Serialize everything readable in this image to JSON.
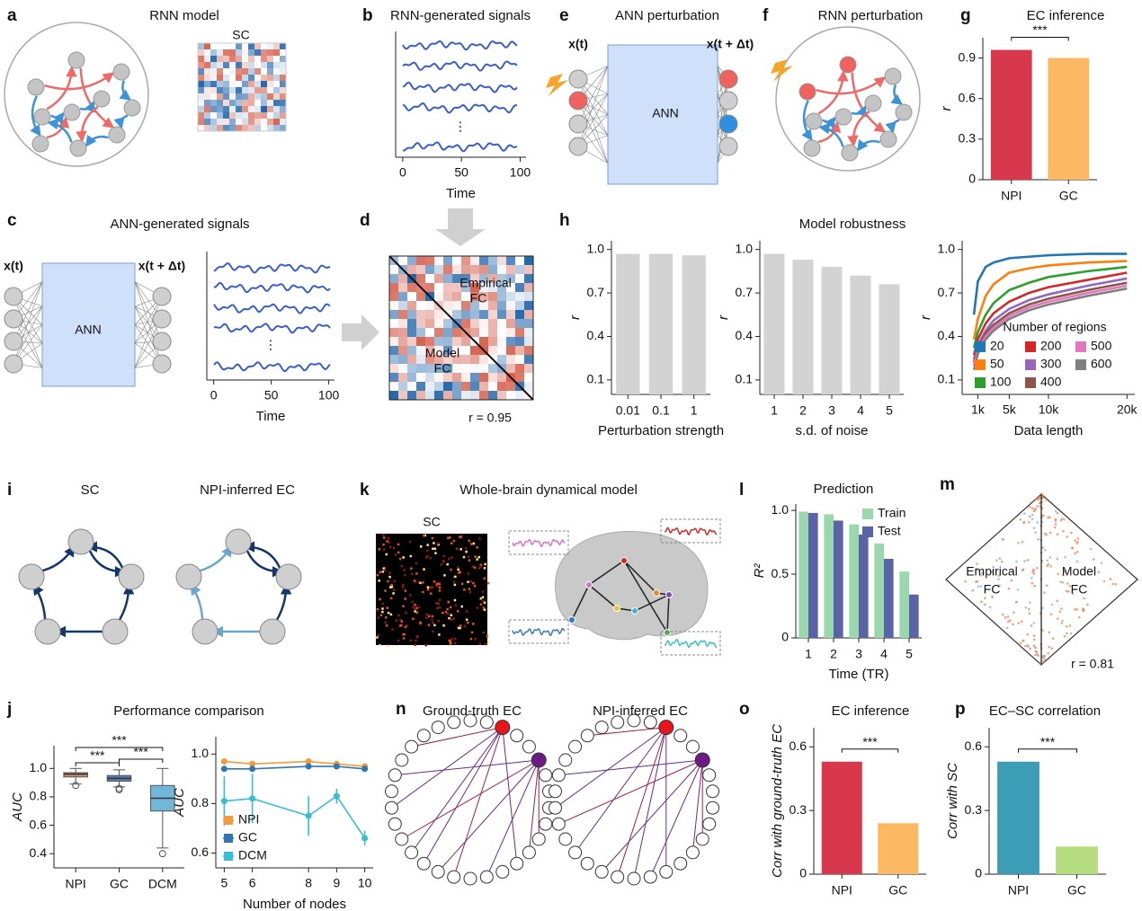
{
  "panel_letters": [
    "a",
    "b",
    "c",
    "d",
    "e",
    "f",
    "g",
    "h",
    "i",
    "j",
    "k",
    "l",
    "m",
    "n",
    "o",
    "p"
  ],
  "diagram_text": [
    "RNN model",
    "SC",
    "RNN-generated signals",
    "ANN perturbation",
    "x(t)",
    "x(t + Δt)",
    "ANN",
    "RNN perturbation",
    "ANN-generated signals",
    "x(t)",
    "x(t + Δt)",
    "ANN",
    "⋮",
    "⋮",
    "Empirical",
    "FC",
    "Model",
    "FC",
    "r = 0.95",
    "Model robustness",
    "SC",
    "NPI-inferred EC",
    "Whole-brain dynamical model",
    "SC",
    "Empirical",
    "FC",
    "Model",
    "FC",
    "r = 0.81",
    "Performance comparison",
    "Ground-truth EC",
    "NPI-inferred EC"
  ],
  "chart_data": [
    {
      "type": "bar",
      "title": "EC inference",
      "categories": [
        "NPI",
        "GC"
      ],
      "values": [
        0.96,
        0.9
      ],
      "colors": [
        "#d8384b",
        "#fdb863"
      ],
      "ylabel": "r",
      "ylim": [
        0,
        1.05
      ],
      "yticks": [
        0,
        0.3,
        0.6,
        0.9
      ],
      "annotation": "***"
    },
    {
      "type": "bar",
      "categories": [
        "0.01",
        "0.1",
        "1"
      ],
      "values": [
        0.97,
        0.97,
        0.96
      ],
      "color": "#d3d3d3",
      "ylabel": "r",
      "xlabel": "Perturbation strength",
      "ylim": [
        0,
        1.06
      ],
      "yticks": [
        0.1,
        0.4,
        0.7,
        {
          "value": 1,
          "label": "1.0"
        }
      ]
    },
    {
      "type": "bar",
      "categories": [
        "1",
        "2",
        "3",
        "4",
        "5"
      ],
      "values": [
        0.97,
        0.93,
        0.88,
        0.82,
        0.76
      ],
      "color": "#d3d3d3",
      "ylabel": "r",
      "xlabel": "s.d. of noise",
      "ylim": [
        0,
        1.06
      ],
      "yticks": [
        0.1,
        0.4,
        0.7,
        {
          "value": 1,
          "label": "1.0"
        }
      ]
    },
    {
      "type": "line",
      "x": [
        500,
        1000,
        2000,
        3000,
        5000,
        7500,
        10000,
        15000,
        20000
      ],
      "xlim": [
        -1000,
        21000
      ],
      "xticks": [
        {
          "value": 1000,
          "label": "1k"
        },
        {
          "value": 5000,
          "label": "5k"
        },
        {
          "value": 10000,
          "label": "10k"
        },
        {
          "value": 20000,
          "label": "20k"
        }
      ],
      "xlabel": "Data length",
      "ylabel": "r",
      "ylim": [
        0,
        1.06
      ],
      "yticks": [
        0.1,
        0.4,
        0.7,
        {
          "value": 1,
          "label": "1.0"
        }
      ],
      "legend": "lower right",
      "legend_title": "Number of regions",
      "series": [
        {
          "name": "20",
          "color": "#1f77b4",
          "values": [
            0.55,
            0.78,
            0.88,
            0.91,
            0.94,
            0.95,
            0.96,
            0.97,
            0.97
          ]
        },
        {
          "name": "50",
          "color": "#ff7f0e",
          "values": [
            0.38,
            0.52,
            0.68,
            0.76,
            0.84,
            0.87,
            0.89,
            0.91,
            0.92
          ]
        },
        {
          "name": "100",
          "color": "#2ca02c",
          "values": [
            0.32,
            0.43,
            0.55,
            0.63,
            0.72,
            0.77,
            0.81,
            0.85,
            0.88
          ]
        },
        {
          "name": "200",
          "color": "#d62728",
          "values": [
            0.27,
            0.38,
            0.49,
            0.56,
            0.64,
            0.7,
            0.74,
            0.79,
            0.84
          ]
        },
        {
          "name": "300",
          "color": "#9467bd",
          "values": [
            0.24,
            0.34,
            0.44,
            0.51,
            0.59,
            0.65,
            0.69,
            0.75,
            0.8
          ]
        },
        {
          "name": "400",
          "color": "#8c564b",
          "values": [
            0.22,
            0.32,
            0.42,
            0.48,
            0.56,
            0.62,
            0.66,
            0.72,
            0.77
          ]
        },
        {
          "name": "500",
          "color": "#e377c2",
          "values": [
            0.2,
            0.3,
            0.4,
            0.46,
            0.54,
            0.6,
            0.64,
            0.7,
            0.75
          ]
        },
        {
          "name": "600",
          "color": "#7f7f7f",
          "values": [
            0.17,
            0.28,
            0.38,
            0.44,
            0.52,
            0.58,
            0.62,
            0.68,
            0.73
          ]
        }
      ]
    },
    {
      "type": "grouped_bar",
      "title": "Prediction",
      "categories": [
        "1",
        "2",
        "3",
        "4",
        "5"
      ],
      "ylabel": "R²",
      "xlabel": "Time (TR)",
      "ylim": [
        0,
        1.05
      ],
      "yticks": [
        0,
        0.5,
        {
          "value": 1,
          "label": "1.0"
        }
      ],
      "legend": "upper right",
      "series": [
        {
          "name": "Train",
          "color": "#9ad7ad",
          "values": [
            0.99,
            0.97,
            0.89,
            0.74,
            0.52
          ]
        },
        {
          "name": "Test",
          "color": "#5b63a8",
          "values": [
            0.98,
            0.92,
            0.81,
            0.62,
            0.34
          ]
        }
      ]
    },
    {
      "type": "box",
      "categories": [
        "NPI",
        "GC",
        "DCM"
      ],
      "colors": [
        "#c8906e",
        "#5b7db4",
        "#72b6d8"
      ],
      "ylabel": "AUC",
      "ylim": [
        0.3,
        1.16
      ],
      "yticks": [
        0.4,
        0.6,
        0.8,
        {
          "value": 1,
          "label": "1.0"
        }
      ],
      "whisker_low": [
        0.89,
        0.87,
        0.44
      ],
      "q1": [
        0.94,
        0.91,
        0.7
      ],
      "median": [
        0.96,
        0.93,
        0.79
      ],
      "q3": [
        0.97,
        0.95,
        0.88
      ],
      "whisker_high": [
        1.0,
        0.99,
        1.0
      ],
      "outliers": [
        [
          0.88
        ],
        [
          0.86,
          0.85
        ],
        [
          0.4
        ]
      ],
      "annotations": [
        "***",
        "***",
        "***"
      ]
    },
    {
      "type": "line",
      "x": [
        5,
        6,
        8,
        9,
        10
      ],
      "xlim": [
        4.7,
        10.3
      ],
      "xticks": [
        5,
        6,
        8,
        9,
        10
      ],
      "xlabel": "Number of nodes",
      "ylabel": "AUC",
      "ylim": [
        0.54,
        1.07
      ],
      "yticks": [
        0.6,
        0.8,
        {
          "value": 1,
          "label": "1.0"
        }
      ],
      "markers": true,
      "legend": "lower left",
      "series": [
        {
          "name": "NPI",
          "color": "#f39a3a",
          "values": [
            0.97,
            0.96,
            0.97,
            0.96,
            0.95
          ]
        },
        {
          "name": "GC",
          "color": "#2f77b4",
          "values": [
            0.94,
            0.94,
            0.95,
            0.95,
            0.94
          ]
        },
        {
          "name": "DCM",
          "color": "#36bfd0",
          "values": [
            0.81,
            0.82,
            0.75,
            0.83,
            0.66
          ],
          "errors": [
            0.1,
            0.1,
            0.08,
            0.03,
            0.03
          ]
        }
      ]
    },
    {
      "type": "bar",
      "title": "EC inference",
      "categories": [
        "NPI",
        "GC"
      ],
      "values": [
        0.53,
        0.24
      ],
      "colors": [
        "#d8384b",
        "#fdb863"
      ],
      "ylabel": "Corr with ground-truth EC",
      "ylim": [
        0,
        0.69
      ],
      "yticks": [
        0,
        0.3,
        0.6
      ],
      "annotation": "***"
    },
    {
      "type": "bar",
      "title": "EC–SC correlation",
      "categories": [
        "NPI",
        "GC"
      ],
      "values": [
        0.53,
        0.13
      ],
      "colors": [
        "#3d9cb6",
        "#b5dc7e"
      ],
      "ylabel": "Corr with SC",
      "ylim": [
        0,
        0.69
      ],
      "yticks": [
        0,
        0.3,
        0.6
      ],
      "annotation": "***"
    },
    {
      "type": "signal",
      "xlabel": "Time",
      "xlim": [
        -6,
        105
      ],
      "xticks": [
        0,
        50,
        100
      ]
    },
    {
      "type": "signal",
      "xlabel": "Time",
      "xlim": [
        -6,
        105
      ],
      "xticks": [
        0,
        50,
        100
      ]
    }
  ]
}
